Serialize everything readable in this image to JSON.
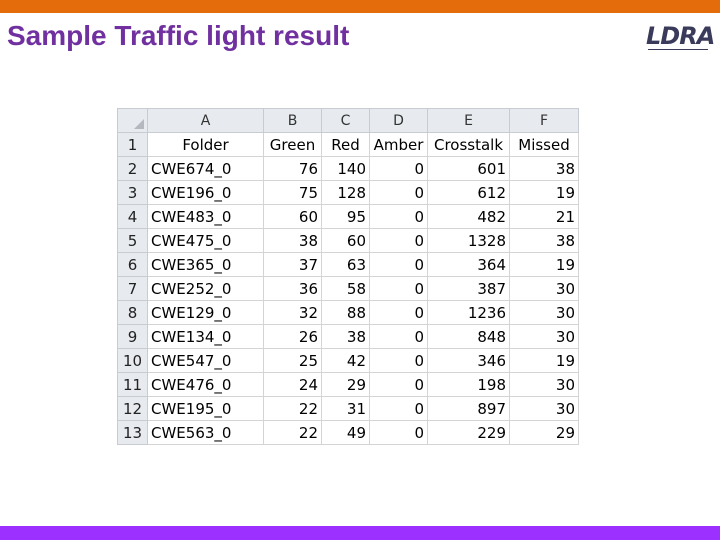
{
  "slide": {
    "title": "Sample Traffic light result",
    "logo_text": "LDRA",
    "colors": {
      "top_bar": "#e46c0a",
      "bottom_bar": "#9b30ff",
      "title": "#7030a0"
    }
  },
  "sheet": {
    "column_letters": [
      "A",
      "B",
      "C",
      "D",
      "E",
      "F"
    ],
    "header_row": {
      "num": "1",
      "cells": [
        "Folder",
        "Green",
        "Red",
        "Amber",
        "Crosstalk",
        "Missed"
      ]
    },
    "rows": [
      {
        "num": "2",
        "cells": [
          "CWE674_0",
          "76",
          "140",
          "0",
          "601",
          "38"
        ]
      },
      {
        "num": "3",
        "cells": [
          "CWE196_0",
          "75",
          "128",
          "0",
          "612",
          "19"
        ]
      },
      {
        "num": "4",
        "cells": [
          "CWE483_0",
          "60",
          "95",
          "0",
          "482",
          "21"
        ]
      },
      {
        "num": "5",
        "cells": [
          "CWE475_0",
          "38",
          "60",
          "0",
          "1328",
          "38"
        ]
      },
      {
        "num": "6",
        "cells": [
          "CWE365_0",
          "37",
          "63",
          "0",
          "364",
          "19"
        ]
      },
      {
        "num": "7",
        "cells": [
          "CWE252_0",
          "36",
          "58",
          "0",
          "387",
          "30"
        ]
      },
      {
        "num": "8",
        "cells": [
          "CWE129_0",
          "32",
          "88",
          "0",
          "1236",
          "30"
        ]
      },
      {
        "num": "9",
        "cells": [
          "CWE134_0",
          "26",
          "38",
          "0",
          "848",
          "30"
        ]
      },
      {
        "num": "10",
        "cells": [
          "CWE547_0",
          "25",
          "42",
          "0",
          "346",
          "19"
        ]
      },
      {
        "num": "11",
        "cells": [
          "CWE476_0",
          "24",
          "29",
          "0",
          "198",
          "30"
        ]
      },
      {
        "num": "12",
        "cells": [
          "CWE195_0",
          "22",
          "31",
          "0",
          "897",
          "30"
        ]
      },
      {
        "num": "13",
        "cells": [
          "CWE563_0",
          "22",
          "49",
          "0",
          "229",
          "29"
        ]
      }
    ]
  }
}
